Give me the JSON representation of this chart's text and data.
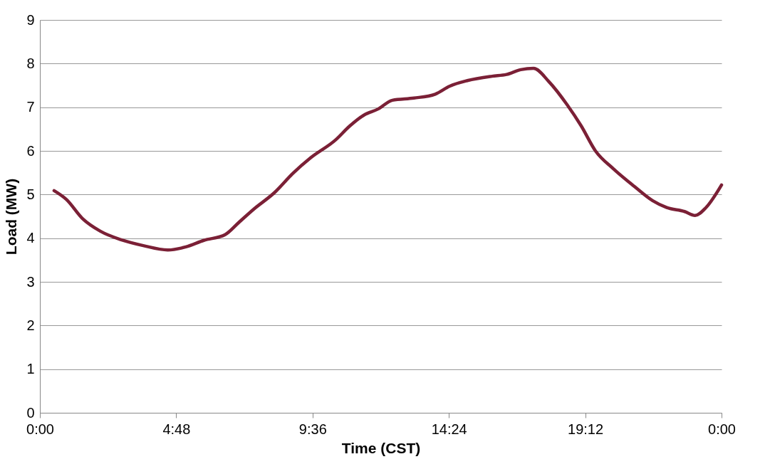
{
  "chart_data": {
    "type": "line",
    "xlabel": "Time (CST)",
    "ylabel": "Load (MW)",
    "x": [
      0.5,
      0.93,
      1.5,
      2.13,
      2.88,
      3.64,
      4.5,
      5.14,
      5.77,
      6.52,
      7.02,
      7.52,
      8.27,
      8.9,
      9.53,
      10.41,
      10.91,
      11.41,
      11.91,
      12.41,
      13.17,
      13.92,
      14.42,
      15.05,
      15.92,
      16.43,
      16.93,
      17.38,
      17.93,
      18.56,
      19.06,
      19.56,
      20.19,
      20.94,
      21.57,
      22.07,
      22.7,
      23.07,
      23.45,
      24
    ],
    "series": [
      {
        "color": "#7b2036",
        "values": [
          5.09,
          4.89,
          4.45,
          4.16,
          3.96,
          3.83,
          3.73,
          3.8,
          3.95,
          4.08,
          4.37,
          4.66,
          5.05,
          5.48,
          5.84,
          6.25,
          6.57,
          6.82,
          6.96,
          7.16,
          7.21,
          7.3,
          7.48,
          7.61,
          7.71,
          7.75,
          7.86,
          7.89,
          7.58,
          7.06,
          6.57,
          6.0,
          5.59,
          5.18,
          4.86,
          4.7,
          4.61,
          4.52,
          4.7,
          5.22
        ]
      }
    ],
    "xlim": [
      0,
      24
    ],
    "xticks": [
      {
        "value": 0,
        "label": "0:00"
      },
      {
        "value": 4.8,
        "label": "4:48"
      },
      {
        "value": 9.6,
        "label": "9:36"
      },
      {
        "value": 14.4,
        "label": "14:24"
      },
      {
        "value": 19.2,
        "label": "19:12"
      },
      {
        "value": 24,
        "label": "0:00"
      }
    ],
    "ylim": [
      0,
      9
    ],
    "yticks": [
      0,
      1,
      2,
      3,
      4,
      5,
      6,
      7,
      8,
      9
    ],
    "grid": "y",
    "marker": "none",
    "line_style": "solid"
  }
}
